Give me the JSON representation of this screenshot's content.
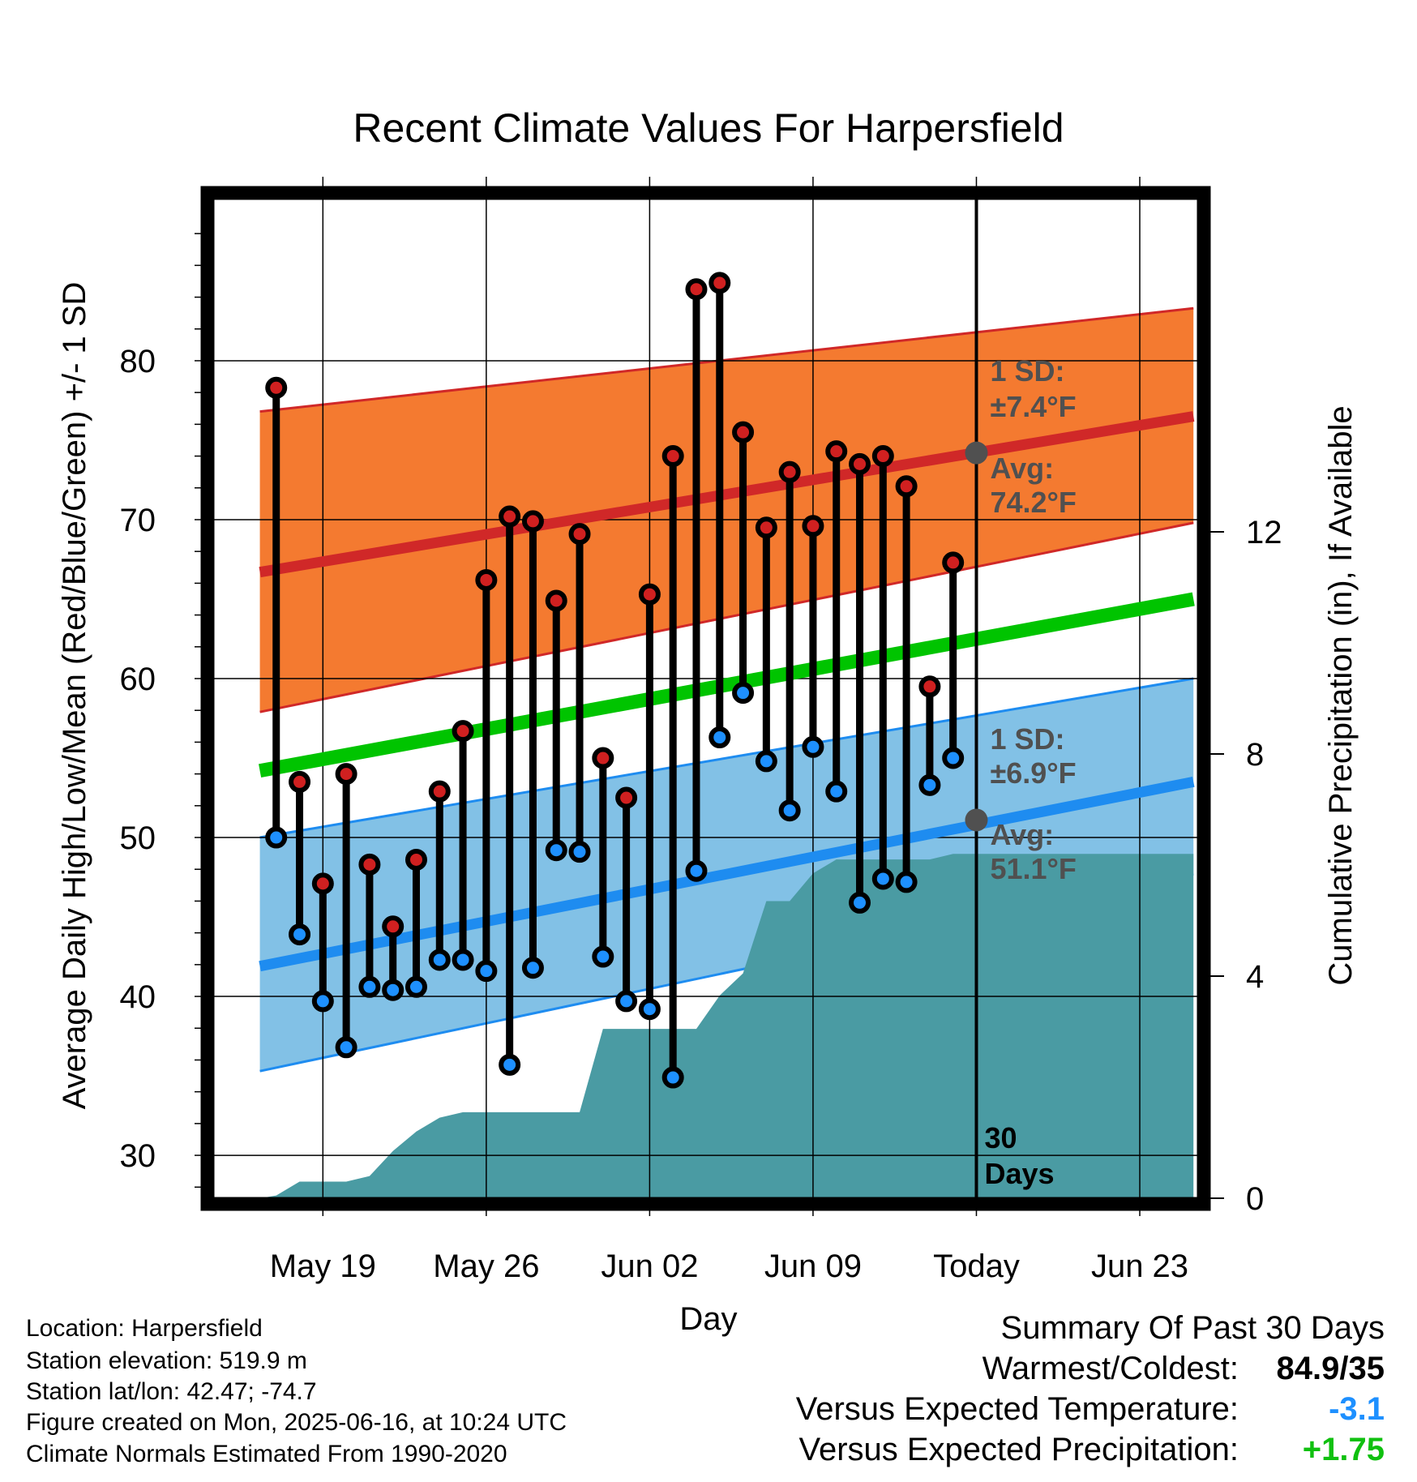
{
  "chart_data": {
    "type": "line",
    "title": "Recent Climate Values For Harpersfield",
    "xlabel": "Day",
    "ylabel_left": "Average Daily High/Low/Mean (Red/Blue/Green) +/- 1 SD",
    "ylabel_right": "Cumulative Precipitation (in), If Available",
    "ylim": [
      27.3,
      90.2
    ],
    "y2lim": [
      0,
      18
    ],
    "xlim": [
      -4.7,
      37.5
    ],
    "grid": true,
    "y_ticks": [
      30,
      40,
      50,
      60,
      70,
      80
    ],
    "y2_ticks": [
      0,
      4,
      8,
      12
    ],
    "x_ticks": [
      {
        "day": 0,
        "label": "May 19"
      },
      {
        "day": 7,
        "label": "May 26"
      },
      {
        "day": 14,
        "label": "Jun 02"
      },
      {
        "day": 21,
        "label": "Jun 09"
      },
      {
        "day": 28,
        "label": "Today"
      },
      {
        "day": 35,
        "label": "Jun 23"
      }
    ],
    "today_day": 28,
    "today_label_1": "30",
    "today_label_2": "Days",
    "days": [
      -2,
      -1,
      0,
      1,
      2,
      3,
      4,
      5,
      6,
      7,
      8,
      9,
      10,
      11,
      12,
      13,
      14,
      15,
      16,
      17,
      18,
      19,
      20,
      21,
      22,
      23,
      24,
      25,
      26,
      27
    ],
    "highs": [
      78.3,
      53.5,
      47.1,
      54.0,
      48.3,
      44.4,
      48.6,
      52.9,
      56.7,
      66.2,
      70.2,
      69.9,
      64.9,
      69.1,
      55.0,
      52.5,
      65.3,
      74.0,
      84.5,
      84.9,
      75.5,
      69.5,
      73.0,
      69.6,
      74.3,
      73.5,
      74.0,
      72.1,
      59.5,
      67.3
    ],
    "lows": [
      50.0,
      43.9,
      39.7,
      36.8,
      40.6,
      40.4,
      40.6,
      42.3,
      42.3,
      41.6,
      35.7,
      41.8,
      49.2,
      49.1,
      42.5,
      39.7,
      39.2,
      34.9,
      47.9,
      56.3,
      59.1,
      54.8,
      51.7,
      55.7,
      52.9,
      45.9,
      47.4,
      47.2,
      53.3,
      55.0
    ],
    "normals": {
      "days": [
        -2.7,
        37.3
      ],
      "high_avg": [
        66.7,
        76.5
      ],
      "high_upper": [
        76.8,
        83.3
      ],
      "high_lower": [
        57.9,
        69.8
      ],
      "mean_avg": [
        54.2,
        65.0
      ],
      "low_avg": [
        41.9,
        53.5
      ],
      "low_upper": [
        50.0,
        60.0
      ],
      "low_lower": [
        35.3,
        47.7
      ]
    },
    "precip_cumulative": {
      "days": [
        -2.7,
        -2,
        -1,
        0,
        1,
        2,
        3,
        4,
        5,
        6,
        7,
        8,
        9,
        10,
        11,
        12,
        13,
        14,
        15,
        16,
        17,
        18,
        19,
        20,
        21,
        22,
        23,
        24,
        25,
        26,
        27,
        28,
        37.3
      ],
      "values": [
        0,
        0.05,
        0.3,
        0.3,
        0.3,
        0.4,
        0.85,
        1.2,
        1.45,
        1.55,
        1.55,
        1.55,
        1.55,
        1.55,
        1.55,
        3.05,
        3.05,
        3.05,
        3.05,
        3.05,
        3.65,
        4.05,
        5.35,
        5.35,
        5.85,
        6.1,
        6.1,
        6.1,
        6.1,
        6.1,
        6.2,
        6.2,
        6.2
      ]
    },
    "annotations": {
      "high_sd_label": "1 SD:",
      "high_sd_value": "±7.4°F",
      "high_avg_label": "Avg:",
      "high_avg_value": "74.2°F",
      "high_today_avg": 74.2,
      "low_sd_label": "1 SD:",
      "low_sd_value": "±6.9°F",
      "low_avg_label": "Avg:",
      "low_avg_value": "51.1°F",
      "low_today_avg": 51.1
    },
    "colors": {
      "high_band": "#f47a30",
      "high_line": "#d02828",
      "mean_line": "#00c400",
      "low_band": "#82c1e6",
      "low_line": "#1e8cf0",
      "precip": "#4a9ba3",
      "high_marker": "#d02020",
      "low_marker": "#1e90ff",
      "annotation_text": "#505050"
    }
  },
  "info": {
    "location": "Location: Harpersfield",
    "elevation": "Station elevation: 519.9 m",
    "latlon": "Station lat/lon: 42.47; -74.7",
    "created": "Figure created on Mon, 2025-06-16, at 10:24 UTC",
    "normals": "Climate Normals Estimated From 1990-2020"
  },
  "summary": {
    "title": "Summary Of Past 30 Days",
    "warmest_coldest_label": "Warmest/Coldest:",
    "warmest_coldest_value": "84.9/35",
    "temp_label": "Versus Expected Temperature:",
    "temp_value": "-3.1",
    "temp_color": "#1e90ff",
    "precip_label": "Versus Expected Precipitation:",
    "precip_value": "+1.75",
    "precip_color": "#10c010"
  }
}
